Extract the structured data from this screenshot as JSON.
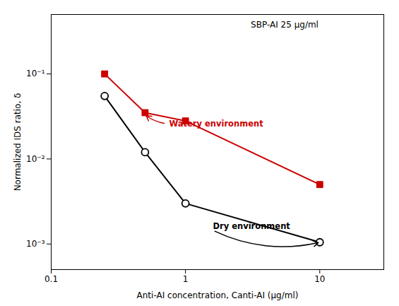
{
  "chart_data": {
    "type": "line",
    "x_label": "Anti-AI concentration, Canti-AI (μg/ml)",
    "y_label": "Normalized IDS ratio, δ",
    "log": true,
    "grid": false,
    "x": [
      0.25,
      0.5,
      1.0,
      10.0
    ],
    "series": [
      {
        "color": "#cc0000",
        "marker": "square",
        "values": [
          0.1,
          0.035,
          0.028,
          0.005
        ]
      },
      {
        "color": "#000000",
        "marker": "circle_open",
        "values": [
          0.055,
          0.012,
          0.003,
          0.00105
        ]
      }
    ],
    "xlim": [
      0.1,
      30
    ],
    "ylim": [
      0.0005,
      0.5
    ],
    "xticks": [
      0.1,
      1,
      10
    ],
    "yticks": [
      {
        "value": 0.001,
        "label": "10⁻³"
      },
      {
        "value": 0.01,
        "label": "10⁻²"
      },
      {
        "value": 0.1,
        "label": "10⁻¹"
      }
    ],
    "annotations": [
      {
        "text": "SBP-AI 25 μg/ml"
      },
      {
        "text": "Watery environment",
        "x": 0.5,
        "y": 0.033,
        "text_x": 0.72,
        "text_y": 0.026,
        "color": "#cc0000"
      },
      {
        "text": "Dry environment",
        "x": 10.0,
        "y": 0.00105,
        "text_x": 1.6,
        "text_y": 0.00145,
        "color": "#000000"
      }
    ]
  }
}
